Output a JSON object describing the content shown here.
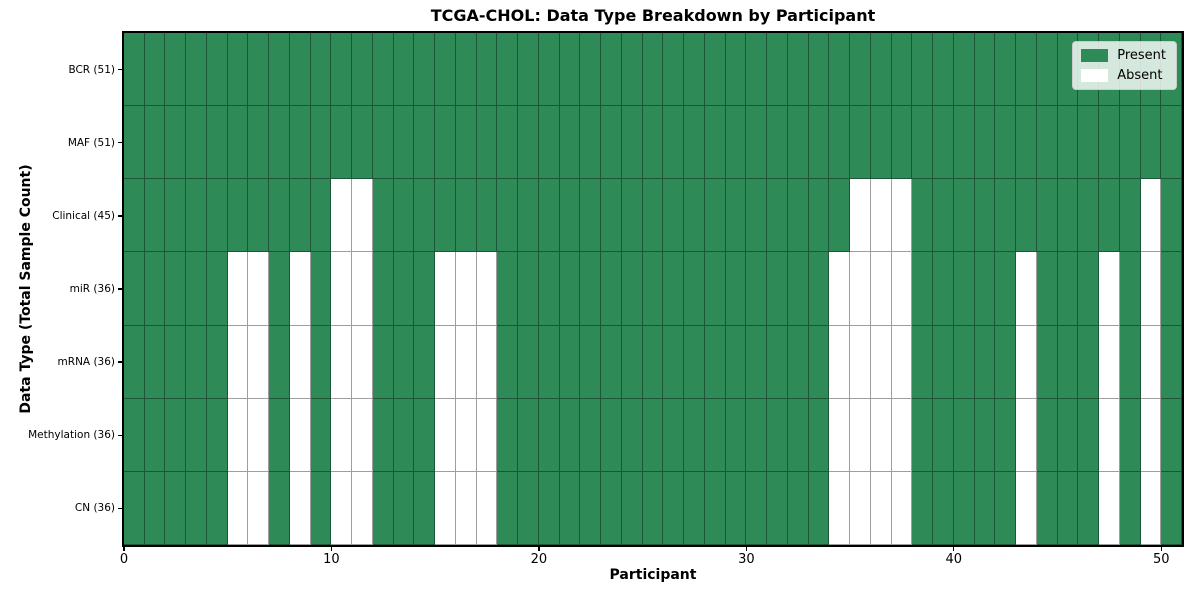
{
  "chart_data": {
    "type": "heatmap",
    "title": "TCGA-CHOL: Data Type Breakdown by Participant",
    "xlabel": "Participant",
    "ylabel": "Data Type (Total Sample Count)",
    "n_participants": 51,
    "x_axis_range": [
      0,
      51
    ],
    "x_ticks": [
      0,
      10,
      20,
      30,
      40,
      50
    ],
    "x_tick_labels": [
      "0",
      "10",
      "20",
      "30",
      "40",
      "50"
    ],
    "grid": true,
    "legend_position": "upper right",
    "rows": [
      {
        "label": "BCR (51)",
        "data_type": "BCR",
        "present_count": 51,
        "absent_participants": []
      },
      {
        "label": "MAF (51)",
        "data_type": "MAF",
        "present_count": 51,
        "absent_participants": []
      },
      {
        "label": "Clinical (45)",
        "data_type": "Clinical",
        "present_count": 45,
        "absent_participants": [
          10,
          11,
          35,
          36,
          37,
          49
        ]
      },
      {
        "label": "miR (36)",
        "data_type": "miR",
        "present_count": 36,
        "absent_participants": [
          5,
          6,
          8,
          10,
          11,
          15,
          16,
          17,
          34,
          35,
          36,
          37,
          43,
          47,
          49
        ]
      },
      {
        "label": "mRNA (36)",
        "data_type": "mRNA",
        "present_count": 36,
        "absent_participants": [
          5,
          6,
          8,
          10,
          11,
          15,
          16,
          17,
          34,
          35,
          36,
          37,
          43,
          47,
          49
        ]
      },
      {
        "label": "Methylation (36)",
        "data_type": "Methylation",
        "present_count": 36,
        "absent_participants": [
          5,
          6,
          8,
          10,
          11,
          15,
          16,
          17,
          34,
          35,
          36,
          37,
          43,
          47,
          49
        ]
      },
      {
        "label": "CN (36)",
        "data_type": "CN",
        "present_count": 36,
        "absent_participants": [
          5,
          6,
          8,
          10,
          11,
          15,
          16,
          17,
          34,
          35,
          36,
          37,
          43,
          47,
          49
        ]
      }
    ],
    "legend": [
      {
        "label": "Present",
        "color": "#2e8b57"
      },
      {
        "label": "Absent",
        "color": "#ffffff"
      }
    ],
    "colors": {
      "present": "#2e8b57",
      "absent": "#ffffff",
      "grid_line": "rgba(0,0,0,0.38)",
      "spine": "#000000"
    }
  }
}
